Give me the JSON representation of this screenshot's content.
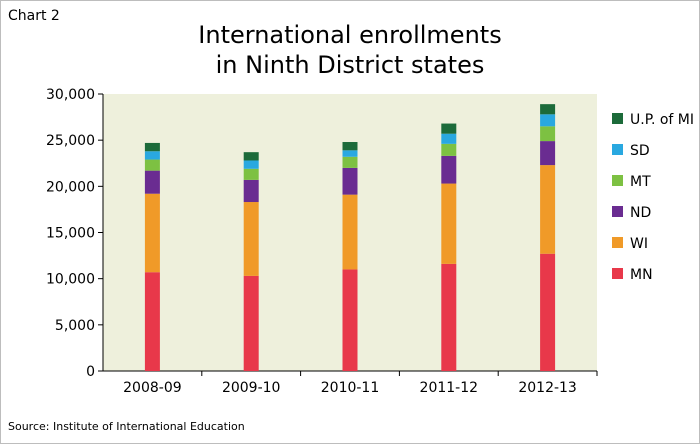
{
  "header": {
    "chart_label": "Chart 2",
    "title_line1": "International enrollments",
    "title_line2": "in Ninth District states"
  },
  "footer": {
    "source": "Source: Institute of International Education"
  },
  "chart_data": {
    "type": "bar",
    "stacked": true,
    "title": "International enrollments in Ninth District states",
    "categories": [
      "2008-09",
      "2009-10",
      "2010-11",
      "2011-12",
      "2012-13"
    ],
    "ylim": [
      0,
      30000
    ],
    "yticks": [
      "0",
      "5,000",
      "10,000",
      "15,000",
      "20,000",
      "25,000",
      "30,000"
    ],
    "ytick_values": [
      0,
      5000,
      10000,
      15000,
      20000,
      25000,
      30000
    ],
    "legend_position": "right",
    "plot_background": "#eef0dc",
    "series": [
      {
        "name": "MN",
        "color": "#e8384a",
        "values": [
          10700,
          10300,
          11000,
          11600,
          12700
        ]
      },
      {
        "name": "WI",
        "color": "#f09a28",
        "values": [
          8500,
          8000,
          8100,
          8700,
          9600
        ]
      },
      {
        "name": "ND",
        "color": "#6a2c91",
        "values": [
          2500,
          2400,
          2900,
          3000,
          2600
        ]
      },
      {
        "name": "MT",
        "color": "#7dc142",
        "values": [
          1200,
          1200,
          1200,
          1300,
          1600
        ]
      },
      {
        "name": "SD",
        "color": "#29a8e0",
        "values": [
          900,
          900,
          700,
          1100,
          1300
        ]
      },
      {
        "name": "U.P. of MI",
        "color": "#1c6b3a",
        "values": [
          900,
          900,
          900,
          1100,
          1100
        ]
      }
    ]
  }
}
